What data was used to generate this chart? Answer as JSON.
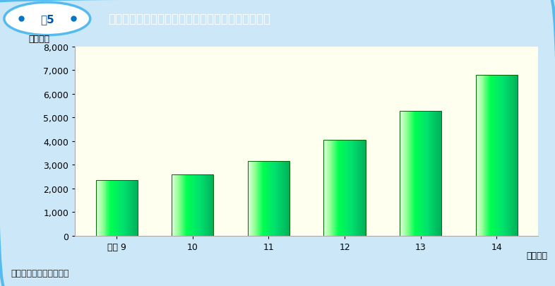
{
  "categories": [
    "平成 9",
    "10",
    "11",
    "12",
    "13",
    "14"
  ],
  "values": [
    2350,
    2600,
    3150,
    4050,
    5270,
    6800
  ],
  "plot_bg_color": "#fffff0",
  "outer_bg_color": "#cce8f8",
  "header_bg_color": "#00aaee",
  "header_text": "国立大学等と民間等との共同研究の実施件数の抜移",
  "fig_label": "囵5",
  "ylabel": "（件数）",
  "xlabel_suffix": "（年度）",
  "source_text": "（資料）文部科学省調べ",
  "ylim": [
    0,
    8000
  ],
  "yticks": [
    0,
    1000,
    2000,
    3000,
    4000,
    5000,
    6000,
    7000,
    8000
  ],
  "title_fontsize": 12,
  "tick_fontsize": 9,
  "ylabel_fontsize": 9,
  "source_fontsize": 9,
  "bar_width": 0.55,
  "header_dot_color": "#0077cc",
  "oval_edge_color": "#55bbee",
  "fig_text_color": "#0055aa",
  "border_color": "#55bbee"
}
